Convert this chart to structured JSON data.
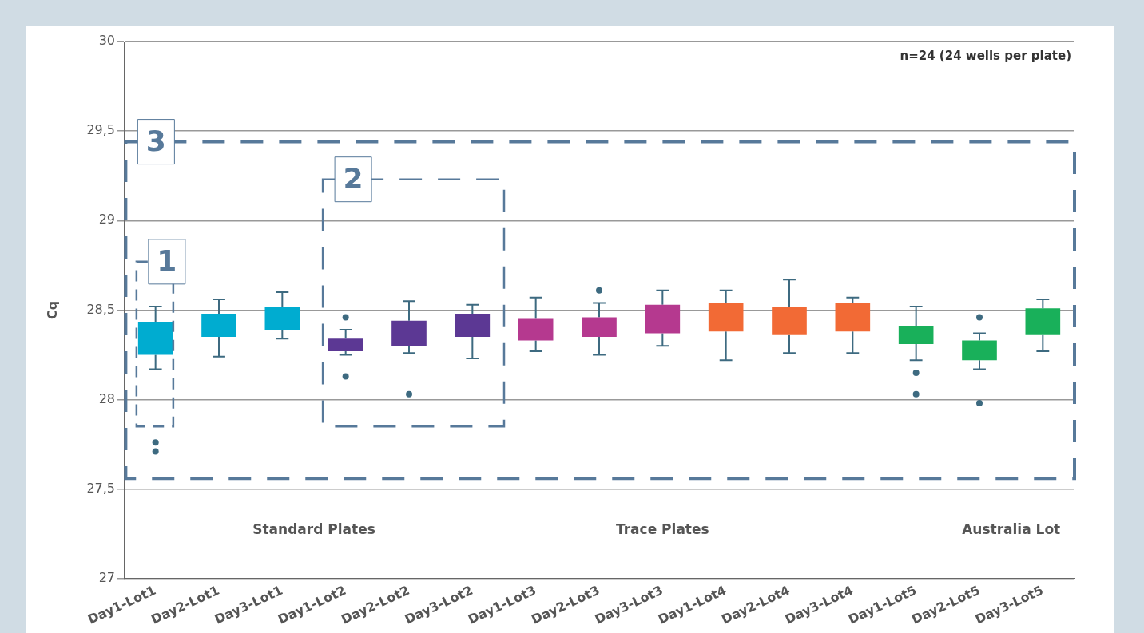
{
  "chart_data": {
    "type": "box",
    "ylabel": "Cq",
    "categories": [
      "Day1-Lot1",
      "Day2-Lot1",
      "Day3-Lot1",
      "Day1-Lot2",
      "Day2-Lot2",
      "Day3-Lot2",
      "Day1-Lot3",
      "Day2-Lot3",
      "Day3-Lot3",
      "Day1-Lot4",
      "Day2-Lot4",
      "Day3-Lot4",
      "Day1-Lot5",
      "Day2-Lot5",
      "Day3-Lot5"
    ],
    "colors": [
      "#00acd0",
      "#00acd0",
      "#00acd0",
      "#5c3894",
      "#5c3894",
      "#5c3894",
      "#b5398f",
      "#b5398f",
      "#b5398f",
      "#f26a35",
      "#f26a35",
      "#f26a35",
      "#19b05a",
      "#19b05a",
      "#19b05a"
    ],
    "boxes": [
      {
        "low": 28.17,
        "q1": 28.25,
        "q3": 28.43,
        "high": 28.52,
        "outliers": [
          27.76,
          27.71
        ]
      },
      {
        "low": 28.24,
        "q1": 28.35,
        "q3": 28.48,
        "high": 28.56
      },
      {
        "low": 28.34,
        "q1": 28.39,
        "q3": 28.52,
        "high": 28.6
      },
      {
        "low": 28.25,
        "q1": 28.27,
        "q3": 28.34,
        "high": 28.39,
        "outliers": [
          28.46,
          28.13
        ]
      },
      {
        "low": 28.26,
        "q1": 28.3,
        "q3": 28.44,
        "high": 28.55,
        "outliers": [
          28.03
        ]
      },
      {
        "low": 28.23,
        "q1": 28.35,
        "q3": 28.48,
        "high": 28.53
      },
      {
        "low": 28.27,
        "q1": 28.33,
        "q3": 28.45,
        "high": 28.57
      },
      {
        "low": 28.25,
        "q1": 28.35,
        "q3": 28.46,
        "high": 28.54,
        "outliers": [
          28.61
        ]
      },
      {
        "low": 28.3,
        "q1": 28.37,
        "q3": 28.53,
        "high": 28.61
      },
      {
        "low": 28.22,
        "q1": 28.38,
        "q3": 28.54,
        "high": 28.61
      },
      {
        "low": 28.26,
        "q1": 28.36,
        "q3": 28.52,
        "high": 28.67
      },
      {
        "low": 28.26,
        "q1": 28.38,
        "q3": 28.54,
        "high": 28.57
      },
      {
        "low": 28.22,
        "q1": 28.31,
        "q3": 28.41,
        "high": 28.52,
        "outliers": [
          28.15,
          28.03
        ]
      },
      {
        "low": 28.17,
        "q1": 28.22,
        "q3": 28.33,
        "high": 28.37,
        "outliers": [
          28.46,
          27.98
        ]
      },
      {
        "low": 28.27,
        "q1": 28.36,
        "q3": 28.51,
        "high": 28.56
      }
    ],
    "ylim": [
      27,
      30
    ],
    "yticks": [
      27,
      {
        "value": 27.5,
        "label": "27,5"
      },
      28,
      {
        "value": 28.5,
        "label": "28,5"
      },
      29,
      {
        "value": 29.5,
        "label": "29,5"
      },
      30
    ],
    "grid": "y",
    "legend": false,
    "annotations": [
      "n=24 (24 wells per plate)",
      "Standard Plates",
      "Trace Plates",
      "Australia Lot",
      "1",
      "2",
      "3"
    ]
  }
}
